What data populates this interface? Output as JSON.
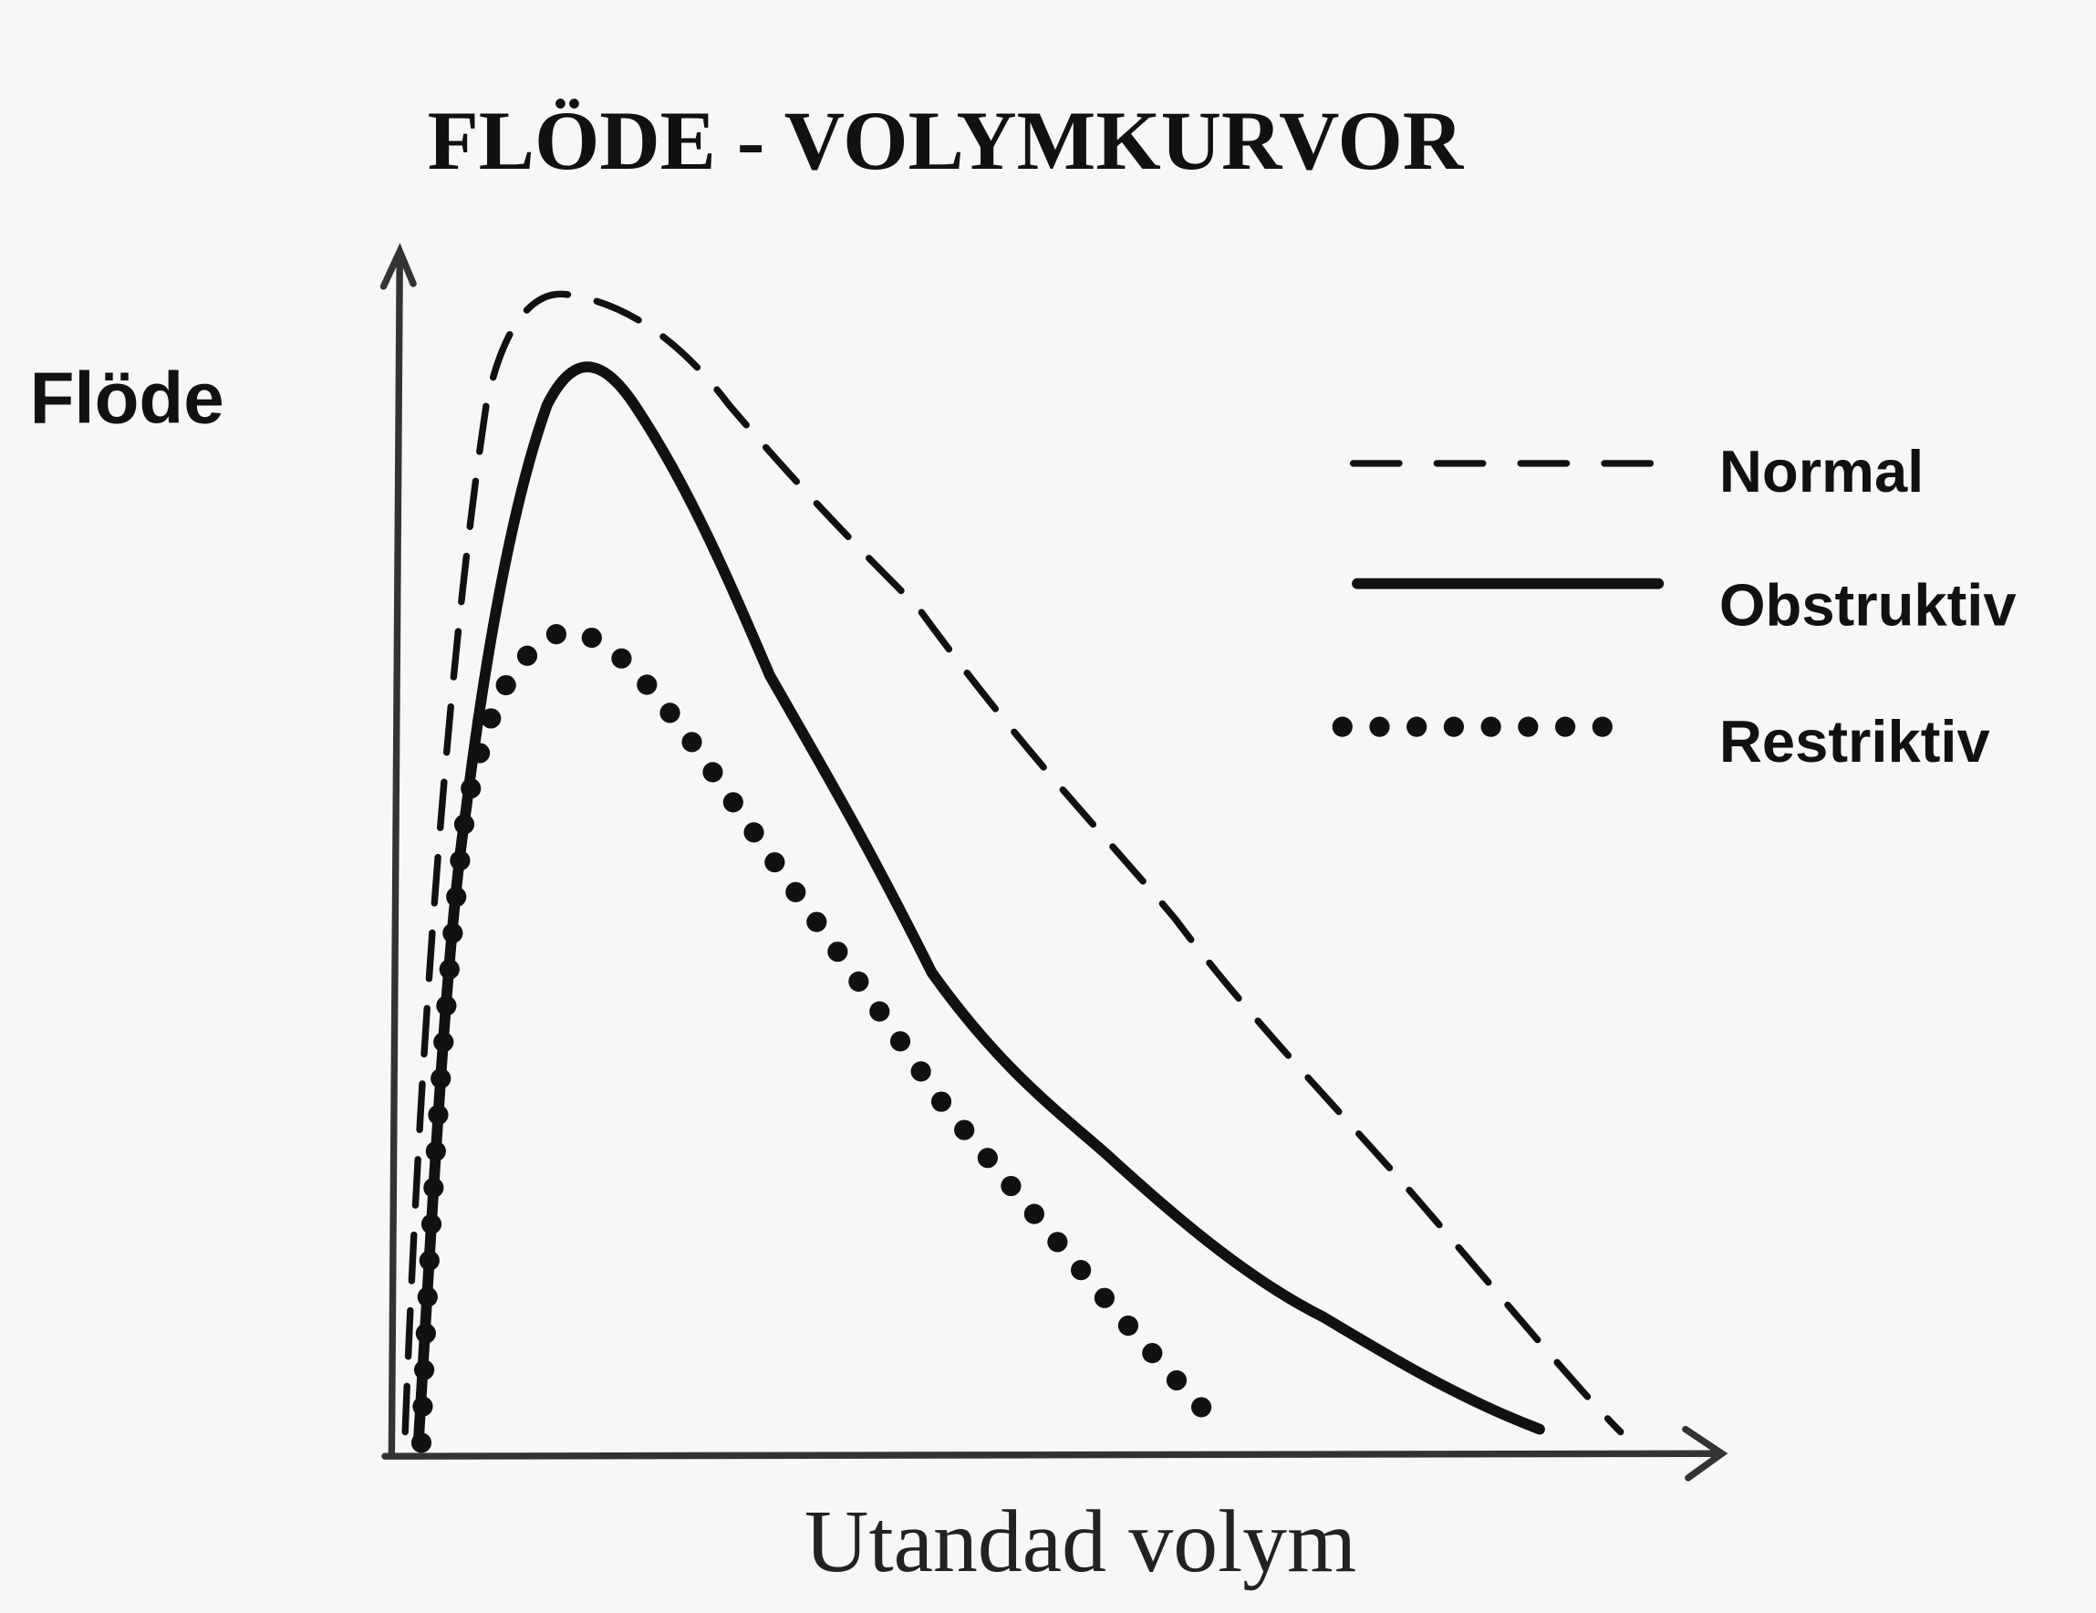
{
  "title": "FLÖDE - VOLYMKURVOR",
  "y_axis_label": "Flöde",
  "x_axis_label": "Utandad volym",
  "legend": [
    "Normal",
    "Obstruktiv",
    "Restriktiv"
  ]
}
